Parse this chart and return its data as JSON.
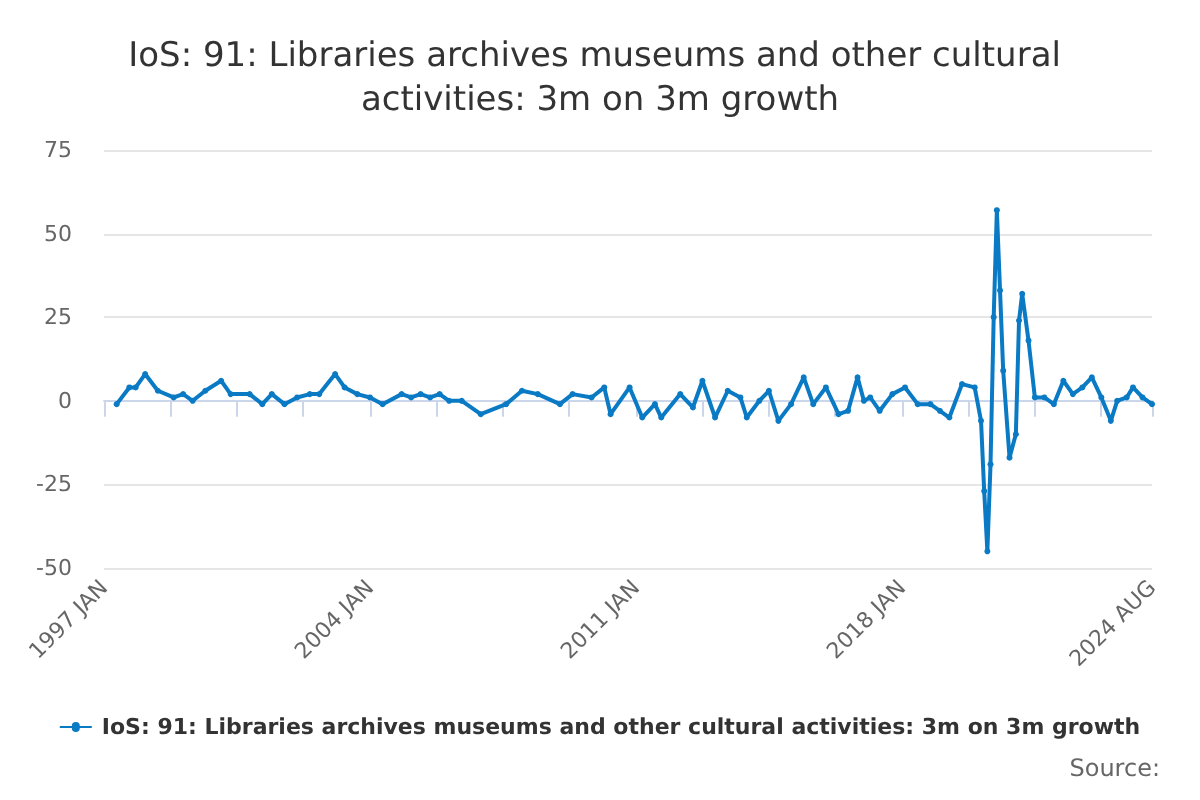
{
  "chart_data": {
    "type": "line",
    "title": "IoS: 91: Libraries archives museums and other cultural activities: 3m on 3m growth",
    "annotations": [
      "Source:"
    ],
    "x": [
      "1997-05",
      "1997-09",
      "1997-11",
      "1998-02",
      "1998-06",
      "1998-11",
      "1999-02",
      "1999-05",
      "1999-09",
      "2000-02",
      "2000-05",
      "2000-11",
      "2001-03",
      "2001-06",
      "2001-10",
      "2002-02",
      "2002-06",
      "2002-09",
      "2003-02",
      "2003-05",
      "2003-09",
      "2004-01",
      "2004-05",
      "2004-11",
      "2005-02",
      "2005-05",
      "2005-08",
      "2005-11",
      "2006-02",
      "2006-06",
      "2006-12",
      "2007-08",
      "2008-01",
      "2008-06",
      "2009-01",
      "2009-05",
      "2009-11",
      "2010-03",
      "2010-05",
      "2010-11",
      "2011-03",
      "2011-07",
      "2011-09",
      "2012-03",
      "2012-07",
      "2012-10",
      "2013-02",
      "2013-06",
      "2013-10",
      "2013-12",
      "2014-04",
      "2014-07",
      "2014-10",
      "2015-02",
      "2015-06",
      "2015-09",
      "2016-01",
      "2016-05",
      "2016-08",
      "2016-11",
      "2017-01",
      "2017-03",
      "2017-06",
      "2017-10",
      "2018-02",
      "2018-06",
      "2018-10",
      "2019-01",
      "2019-04",
      "2019-08",
      "2019-12",
      "2020-02",
      "2020-03",
      "2020-04",
      "2020-05",
      "2020-06",
      "2020-07",
      "2020-08",
      "2020-09",
      "2020-11",
      "2021-01",
      "2021-02",
      "2021-03",
      "2021-05",
      "2021-07",
      "2021-10",
      "2022-01",
      "2022-04",
      "2022-07",
      "2022-10",
      "2023-01",
      "2023-04",
      "2023-07",
      "2023-09",
      "2023-12",
      "2024-02",
      "2024-05",
      "2024-08"
    ],
    "series": [
      {
        "name": "IoS: 91: Libraries archives museums and other cultural activities: 3m on 3m growth",
        "color": "#0a7ac4",
        "values": [
          -1,
          4,
          4,
          8,
          3,
          1,
          2,
          0,
          3,
          6,
          2,
          2,
          -1,
          2,
          -1,
          1,
          2,
          2,
          8,
          4,
          2,
          1,
          -1,
          2,
          1,
          2,
          1,
          2,
          0,
          0,
          -4,
          -1,
          3,
          2,
          -1,
          2,
          1,
          4,
          -4,
          4,
          -5,
          -1,
          -5,
          2,
          -2,
          6,
          -5,
          3,
          1,
          -5,
          0,
          3,
          -6,
          -1,
          7,
          -1,
          4,
          -4,
          -3,
          7,
          0,
          1,
          -3,
          2,
          4,
          -1,
          -1,
          -3,
          -5,
          5,
          4,
          -6,
          -27,
          -45,
          -19,
          25,
          57,
          33,
          9,
          -17,
          -10,
          24,
          32,
          18,
          1,
          1,
          -1,
          6,
          2,
          4,
          7,
          1,
          -6,
          0,
          1,
          4,
          1,
          -1
        ]
      }
    ],
    "xlim": [
      "1997-01",
      "2024-08"
    ],
    "xticks": [
      {
        "value": "1997-01",
        "label": "1997 JAN"
      },
      {
        "value": "1998-10",
        "label": null
      },
      {
        "value": "2000-07",
        "label": null
      },
      {
        "value": "2002-04",
        "label": null
      },
      {
        "value": "2004-01",
        "label": "2004 JAN"
      },
      {
        "value": "2005-10",
        "label": null
      },
      {
        "value": "2007-07",
        "label": null
      },
      {
        "value": "2009-04",
        "label": null
      },
      {
        "value": "2011-01",
        "label": "2011 JAN"
      },
      {
        "value": "2012-10",
        "label": null
      },
      {
        "value": "2014-07",
        "label": null
      },
      {
        "value": "2016-04",
        "label": null
      },
      {
        "value": "2018-01",
        "label": "2018 JAN"
      },
      {
        "value": "2019-10",
        "label": null
      },
      {
        "value": "2021-07",
        "label": null
      },
      {
        "value": "2023-04",
        "label": null
      },
      {
        "value": "2024-08",
        "label": "2024 AUG"
      }
    ],
    "ylim": [
      -50,
      75
    ],
    "yticks": [
      -50,
      -25,
      0,
      25,
      50,
      75
    ],
    "grid": "y",
    "legend": "bottom",
    "marker": "circle",
    "line_style": "solid"
  }
}
